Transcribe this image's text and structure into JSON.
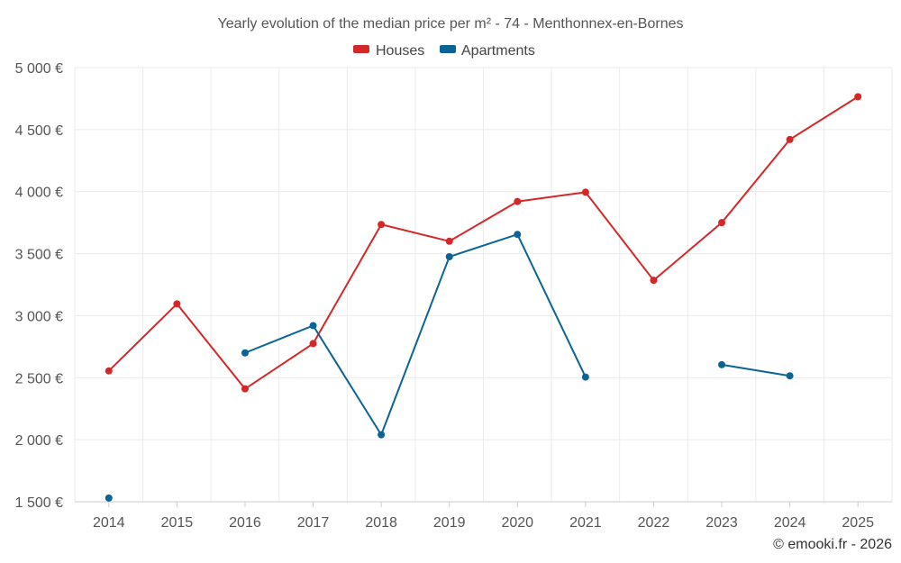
{
  "chart_data": {
    "type": "line",
    "title": "Yearly evolution of the median price per m² - 74 - Menthonnex-en-Bornes",
    "categories": [
      "2014",
      "2015",
      "2016",
      "2017",
      "2018",
      "2019",
      "2020",
      "2021",
      "2022",
      "2023",
      "2024",
      "2025"
    ],
    "y_ticks": [
      1500,
      2000,
      2500,
      3000,
      3500,
      4000,
      4500,
      5000
    ],
    "y_tick_labels": [
      "1 500 €",
      "2 000 €",
      "2 500 €",
      "3 000 €",
      "3 500 €",
      "4 000 €",
      "4 500 €",
      "5 000 €"
    ],
    "ylim": [
      1500,
      5000
    ],
    "xlabel": "",
    "ylabel": "",
    "grid": true,
    "legend_position": "top-center",
    "series": [
      {
        "name": "Houses",
        "color": "#d62728",
        "values": [
          2555,
          3095,
          2410,
          2775,
          3735,
          3600,
          3920,
          3995,
          3285,
          3750,
          4420,
          4765
        ]
      },
      {
        "name": "Apartments",
        "color": "#0a6496",
        "values": [
          1530,
          null,
          2700,
          2920,
          2040,
          3475,
          3655,
          2505,
          null,
          2605,
          2515,
          null
        ]
      }
    ]
  },
  "credit": "© emooki.fr - 2026"
}
